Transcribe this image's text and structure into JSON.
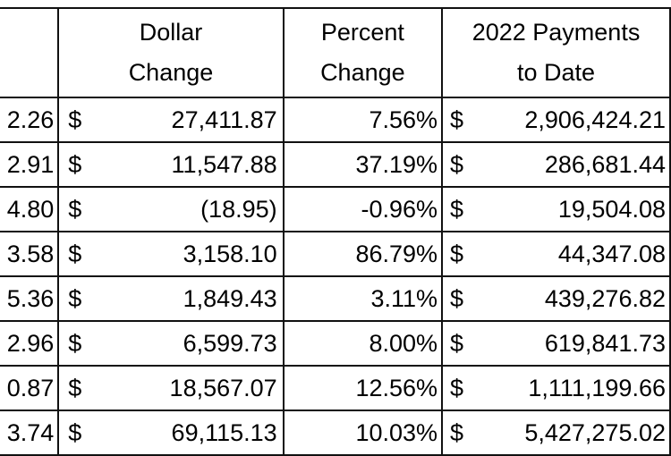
{
  "headers": {
    "dollar_change": [
      "Dollar",
      "Change"
    ],
    "percent_change": [
      "Percent",
      "Change"
    ],
    "payments": [
      "2022 Payments",
      "to Date"
    ]
  },
  "rows": [
    {
      "prev": "2.26",
      "cur1": "$",
      "dollar": "27,411.87",
      "percent": "7.56%",
      "cur2": "$",
      "payments": "2,906,424.21"
    },
    {
      "prev": "2.91",
      "cur1": "$",
      "dollar": "11,547.88",
      "percent": "37.19%",
      "cur2": "$",
      "payments": "286,681.44"
    },
    {
      "prev": "4.80",
      "cur1": "$",
      "dollar": "(18.95)",
      "percent": "-0.96%",
      "cur2": "$",
      "payments": "19,504.08"
    },
    {
      "prev": "3.58",
      "cur1": "$",
      "dollar": "3,158.10",
      "percent": "86.79%",
      "cur2": "$",
      "payments": "44,347.08"
    },
    {
      "prev": "5.36",
      "cur1": "$",
      "dollar": "1,849.43",
      "percent": "3.11%",
      "cur2": "$",
      "payments": "439,276.82"
    },
    {
      "prev": "2.96",
      "cur1": "$",
      "dollar": "6,599.73",
      "percent": "8.00%",
      "cur2": "$",
      "payments": "619,841.73"
    },
    {
      "prev": "0.87",
      "cur1": "$",
      "dollar": "18,567.07",
      "percent": "12.56%",
      "cur2": "$",
      "payments": "1,111,199.66"
    },
    {
      "prev": "3.74",
      "cur1": "$",
      "dollar": "69,115.13",
      "percent": "10.03%",
      "cur2": "$",
      "payments": "5,427,275.02"
    }
  ]
}
